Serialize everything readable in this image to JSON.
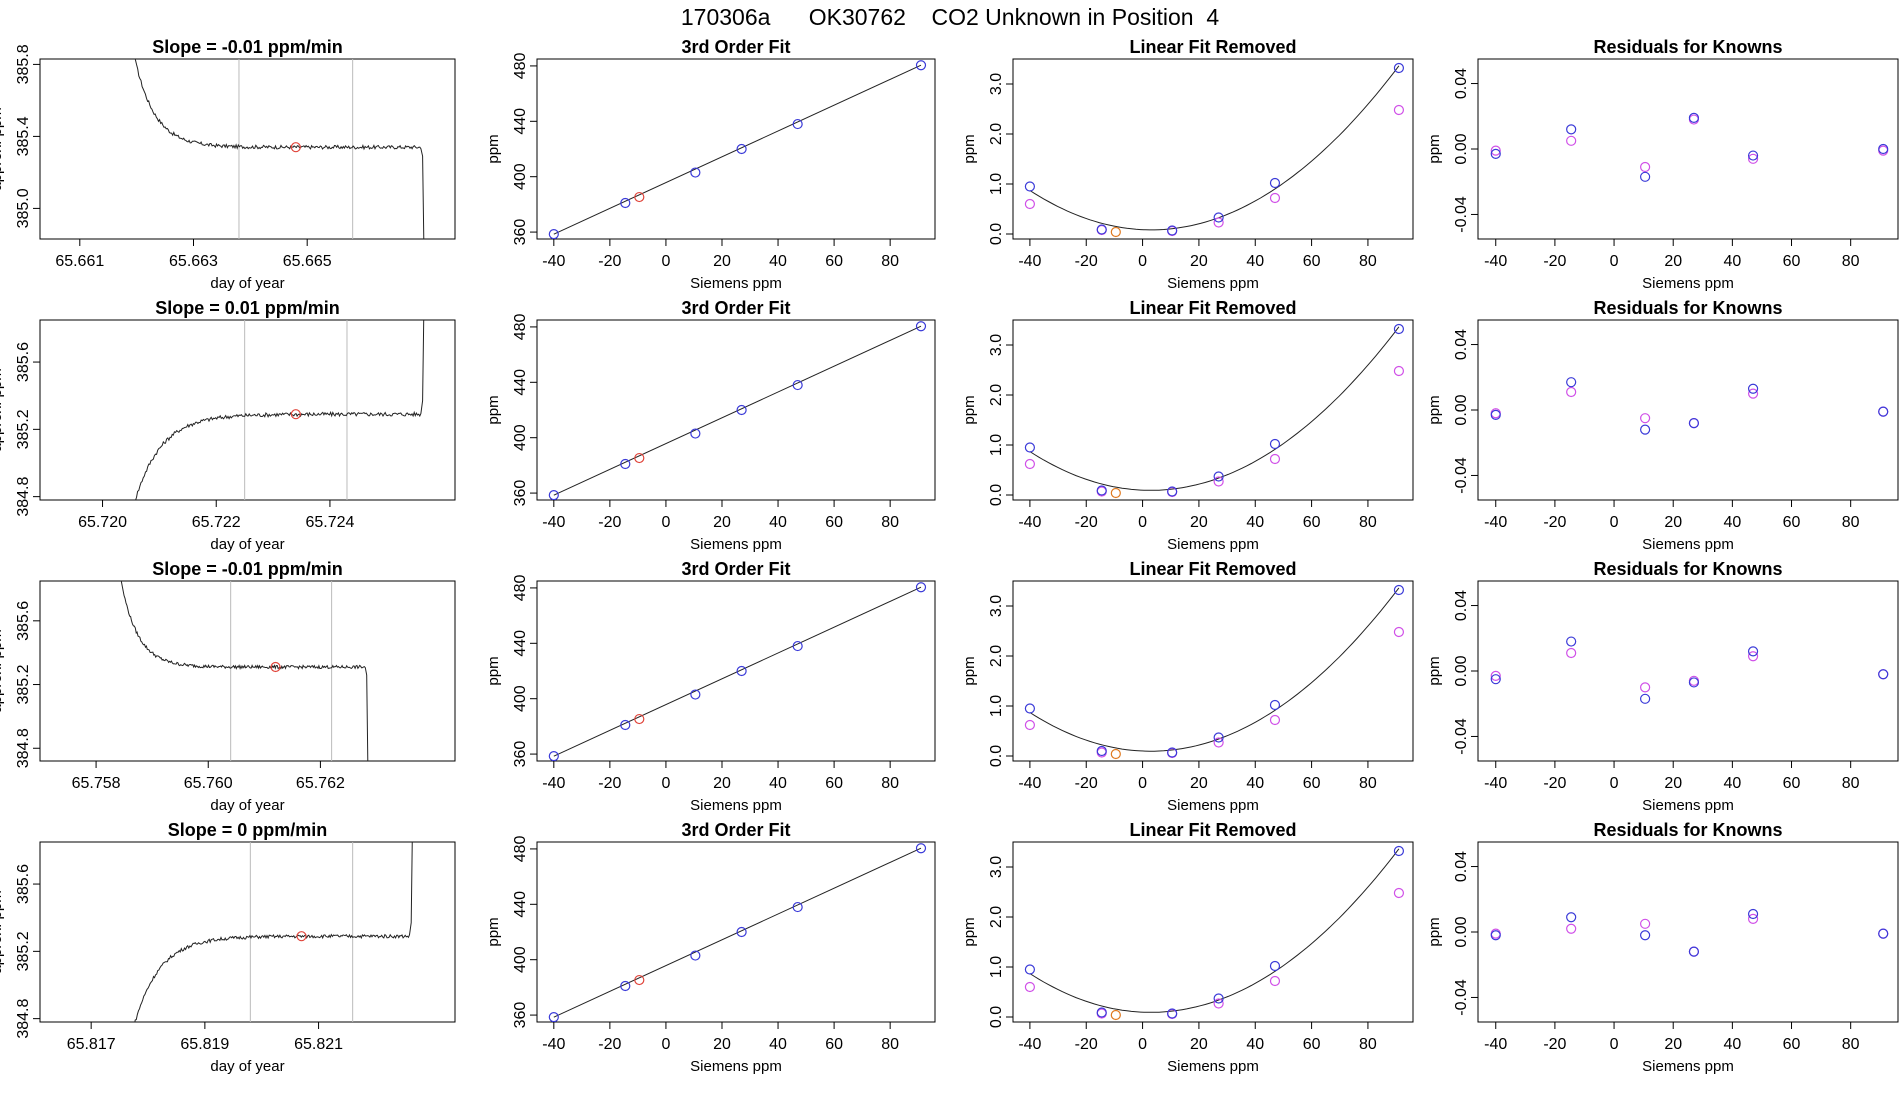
{
  "title": "170306a      OK30762    CO2 Unknown in Position  4",
  "colors": {
    "line": "#222222",
    "known_fit": "#3a3ad8",
    "known_raw": "#d050e8",
    "unknown": "#e0443a",
    "unknown_lfr": "#e07a20",
    "gridline": "#bbbbbb"
  },
  "chart_data": [
    {
      "row": 1,
      "trace": {
        "type": "line",
        "title": "Slope =  -0.01  ppm/min",
        "xlabel": "day of year",
        "ylabel": "approx. ppm",
        "xlim": [
          65.6603,
          65.6676
        ],
        "ylim": [
          384.83,
          385.83
        ],
        "xticks": [
          "65.661",
          "65.663",
          "65.665"
        ],
        "xtick_values": [
          65.661,
          65.663,
          65.665
        ],
        "yticks": [
          "385.0",
          "385.4",
          "385.8"
        ],
        "ytick_values": [
          385.0,
          385.4,
          385.8
        ],
        "vlines": [
          65.6638,
          65.6658
        ],
        "marker": [
          65.6648,
          385.34
        ],
        "shape": "fall",
        "plateau": 385.34,
        "start_x": 65.662,
        "end_x": 65.667,
        "noise": 0.01
      },
      "fit": {
        "type": "scatter",
        "title": "3rd Order Fit",
        "xlabel": "Siemens ppm",
        "ylabel": "ppm",
        "xlim": [
          -46,
          96
        ],
        "ylim": [
          355,
          485
        ],
        "xticks": [
          "-40",
          "-20",
          "0",
          "20",
          "40",
          "60",
          "80"
        ],
        "xtick_values": [
          -40,
          -20,
          0,
          20,
          40,
          60,
          80
        ],
        "yticks": [
          "360",
          "400",
          "440",
          "480"
        ],
        "ytick_values": [
          360,
          400,
          440,
          480
        ],
        "known_x": [
          -40,
          -14.5,
          10.5,
          27,
          47,
          91
        ],
        "known_y": [
          358.5,
          381,
          403,
          420,
          438,
          480.5
        ],
        "unknown_x": [
          -9.5
        ],
        "unknown_y": [
          385.3
        ]
      },
      "lfr": {
        "type": "scatter",
        "title": "Linear Fit Removed",
        "xlabel": "Siemens ppm",
        "ylabel": "ppm",
        "xlim": [
          -46,
          96
        ],
        "ylim": [
          -0.1,
          3.5
        ],
        "xticks": [
          "-40",
          "-20",
          "0",
          "20",
          "40",
          "60",
          "80"
        ],
        "xtick_values": [
          -40,
          -20,
          0,
          20,
          40,
          60,
          80
        ],
        "yticks": [
          "0.0",
          "1.0",
          "2.0",
          "3.0"
        ],
        "ytick_values": [
          0,
          1,
          2,
          3
        ],
        "known_x": [
          -40,
          -14.5,
          10.5,
          27,
          47,
          91
        ],
        "fit_y": [
          0.95,
          0.09,
          0.07,
          0.33,
          1.02,
          3.32
        ],
        "raw_y": [
          0.6,
          0.08,
          0.06,
          0.23,
          0.72,
          2.48
        ],
        "unknown_x": [
          -9.5
        ],
        "unknown_y": [
          0.04
        ]
      },
      "resid": {
        "type": "scatter",
        "title": "Residuals for Knowns",
        "xlabel": "Siemens ppm",
        "ylabel": "ppm",
        "xlim": [
          -46,
          96
        ],
        "ylim": [
          -0.055,
          0.055
        ],
        "xticks": [
          "-40",
          "-20",
          "0",
          "20",
          "40",
          "60",
          "80"
        ],
        "xtick_values": [
          -40,
          -20,
          0,
          20,
          40,
          60,
          80
        ],
        "yticks": [
          "-0.04",
          "0.00",
          "0.04"
        ],
        "ytick_values": [
          -0.04,
          0,
          0.04
        ],
        "known_x": [
          -40,
          -14.5,
          10.5,
          27,
          47,
          91
        ],
        "series1_y": [
          -0.003,
          0.012,
          -0.017,
          0.019,
          -0.004,
          0.0
        ],
        "series2_y": [
          -0.001,
          0.005,
          -0.011,
          0.018,
          -0.006,
          -0.001
        ]
      }
    },
    {
      "row": 2,
      "trace": {
        "type": "line",
        "title": "Slope =  0.01  ppm/min",
        "xlabel": "day of year",
        "ylabel": "approx. ppm",
        "xlim": [
          65.7189,
          65.7262
        ],
        "ylim": [
          384.78,
          385.85
        ],
        "xticks": [
          "65.720",
          "65.722",
          "65.724"
        ],
        "xtick_values": [
          65.72,
          65.722,
          65.724
        ],
        "yticks": [
          "384.8",
          "385.2",
          "385.6"
        ],
        "ytick_values": [
          384.8,
          385.2,
          385.6
        ],
        "vlines": [
          65.7225,
          65.7243
        ],
        "marker": [
          65.7234,
          385.29
        ],
        "shape": "rise",
        "plateau": 385.29,
        "start_x": 65.7205,
        "end_x": 65.7256,
        "noise": 0.012
      },
      "fit": {
        "type": "scatter",
        "title": "3rd Order Fit",
        "xlabel": "Siemens ppm",
        "ylabel": "ppm",
        "xlim": [
          -46,
          96
        ],
        "ylim": [
          355,
          485
        ],
        "xticks": [
          "-40",
          "-20",
          "0",
          "20",
          "40",
          "60",
          "80"
        ],
        "xtick_values": [
          -40,
          -20,
          0,
          20,
          40,
          60,
          80
        ],
        "yticks": [
          "360",
          "400",
          "440",
          "480"
        ],
        "ytick_values": [
          360,
          400,
          440,
          480
        ],
        "known_x": [
          -40,
          -14.5,
          10.5,
          27,
          47,
          91
        ],
        "known_y": [
          358.5,
          381,
          403,
          420,
          438,
          480.5
        ],
        "unknown_x": [
          -9.5
        ],
        "unknown_y": [
          385.3
        ]
      },
      "lfr": {
        "type": "scatter",
        "title": "Linear Fit Removed",
        "xlabel": "Siemens ppm",
        "ylabel": "ppm",
        "xlim": [
          -46,
          96
        ],
        "ylim": [
          -0.1,
          3.5
        ],
        "xticks": [
          "-40",
          "-20",
          "0",
          "20",
          "40",
          "60",
          "80"
        ],
        "xtick_values": [
          -40,
          -20,
          0,
          20,
          40,
          60,
          80
        ],
        "yticks": [
          "0.0",
          "1.0",
          "2.0",
          "3.0"
        ],
        "ytick_values": [
          0,
          1,
          2,
          3
        ],
        "known_x": [
          -40,
          -14.5,
          10.5,
          27,
          47,
          91
        ],
        "fit_y": [
          0.95,
          0.09,
          0.07,
          0.37,
          1.02,
          3.32
        ],
        "raw_y": [
          0.62,
          0.07,
          0.06,
          0.27,
          0.72,
          2.48
        ],
        "unknown_x": [
          -9.5
        ],
        "unknown_y": [
          0.04
        ]
      },
      "resid": {
        "type": "scatter",
        "title": "Residuals for Knowns",
        "xlabel": "Siemens ppm",
        "ylabel": "ppm",
        "xlim": [
          -46,
          96
        ],
        "ylim": [
          -0.055,
          0.055
        ],
        "xticks": [
          "-40",
          "-20",
          "0",
          "20",
          "40",
          "60",
          "80"
        ],
        "xtick_values": [
          -40,
          -20,
          0,
          20,
          40,
          60,
          80
        ],
        "yticks": [
          "-0.04",
          "0.00",
          "0.04"
        ],
        "ytick_values": [
          -0.04,
          0,
          0.04
        ],
        "known_x": [
          -40,
          -14.5,
          10.5,
          27,
          47,
          91
        ],
        "series1_y": [
          -0.003,
          0.017,
          -0.012,
          -0.008,
          0.013,
          -0.001
        ],
        "series2_y": [
          -0.002,
          0.011,
          -0.005,
          -0.008,
          0.01,
          -0.001
        ]
      }
    },
    {
      "row": 3,
      "trace": {
        "type": "line",
        "title": "Slope =  -0.01  ppm/min",
        "xlabel": "day of year",
        "ylabel": "approx. ppm",
        "xlim": [
          65.757,
          65.7644
        ],
        "ylim": [
          384.72,
          385.85
        ],
        "xticks": [
          "65.758",
          "65.760",
          "65.762"
        ],
        "xtick_values": [
          65.758,
          65.76,
          65.762
        ],
        "yticks": [
          "384.8",
          "385.2",
          "385.6"
        ],
        "ytick_values": [
          384.8,
          385.2,
          385.6
        ],
        "vlines": [
          65.7604,
          65.7622
        ],
        "marker": [
          65.7612,
          385.31
        ],
        "shape": "fall",
        "plateau": 385.31,
        "start_x": 65.7585,
        "end_x": 65.7628,
        "noise": 0.01
      },
      "fit": {
        "type": "scatter",
        "title": "3rd Order Fit",
        "xlabel": "Siemens ppm",
        "ylabel": "ppm",
        "xlim": [
          -46,
          96
        ],
        "ylim": [
          355,
          485
        ],
        "xticks": [
          "-40",
          "-20",
          "0",
          "20",
          "40",
          "60",
          "80"
        ],
        "xtick_values": [
          -40,
          -20,
          0,
          20,
          40,
          60,
          80
        ],
        "yticks": [
          "360",
          "400",
          "440",
          "480"
        ],
        "ytick_values": [
          360,
          400,
          440,
          480
        ],
        "known_x": [
          -40,
          -14.5,
          10.5,
          27,
          47,
          91
        ],
        "known_y": [
          358.5,
          381,
          403,
          420,
          438,
          480.5
        ],
        "unknown_x": [
          -9.5
        ],
        "unknown_y": [
          385.3
        ]
      },
      "lfr": {
        "type": "scatter",
        "title": "Linear Fit Removed",
        "xlabel": "Siemens ppm",
        "ylabel": "ppm",
        "xlim": [
          -46,
          96
        ],
        "ylim": [
          -0.1,
          3.5
        ],
        "xticks": [
          "-40",
          "-20",
          "0",
          "20",
          "40",
          "60",
          "80"
        ],
        "xtick_values": [
          -40,
          -20,
          0,
          20,
          40,
          60,
          80
        ],
        "yticks": [
          "0.0",
          "1.0",
          "2.0",
          "3.0"
        ],
        "ytick_values": [
          0,
          1,
          2,
          3
        ],
        "known_x": [
          -40,
          -14.5,
          10.5,
          27,
          47,
          91
        ],
        "fit_y": [
          0.95,
          0.1,
          0.07,
          0.37,
          1.02,
          3.32
        ],
        "raw_y": [
          0.62,
          0.07,
          0.06,
          0.27,
          0.72,
          2.48
        ],
        "unknown_x": [
          -9.5
        ],
        "unknown_y": [
          0.04
        ]
      },
      "resid": {
        "type": "scatter",
        "title": "Residuals for Knowns",
        "xlabel": "Siemens ppm",
        "ylabel": "ppm",
        "xlim": [
          -46,
          96
        ],
        "ylim": [
          -0.055,
          0.055
        ],
        "xticks": [
          "-40",
          "-20",
          "0",
          "20",
          "40",
          "60",
          "80"
        ],
        "xtick_values": [
          -40,
          -20,
          0,
          20,
          40,
          60,
          80
        ],
        "yticks": [
          "-0.04",
          "0.00",
          "0.04"
        ],
        "ytick_values": [
          -0.04,
          0,
          0.04
        ],
        "known_x": [
          -40,
          -14.5,
          10.5,
          27,
          47,
          91
        ],
        "series1_y": [
          -0.005,
          0.018,
          -0.017,
          -0.007,
          0.012,
          -0.002
        ],
        "series2_y": [
          -0.003,
          0.011,
          -0.01,
          -0.006,
          0.009,
          -0.002
        ]
      }
    },
    {
      "row": 4,
      "trace": {
        "type": "line",
        "title": "Slope =  0  ppm/min",
        "xlabel": "day of year",
        "ylabel": "approx. ppm",
        "xlim": [
          65.8161,
          65.8234
        ],
        "ylim": [
          384.78,
          385.85
        ],
        "xticks": [
          "65.817",
          "65.819",
          "65.821"
        ],
        "xtick_values": [
          65.817,
          65.819,
          65.821
        ],
        "yticks": [
          "384.8",
          "385.2",
          "385.6"
        ],
        "ytick_values": [
          384.8,
          385.2,
          385.6
        ],
        "vlines": [
          65.8198,
          65.8216
        ],
        "marker": [
          65.8207,
          385.29
        ],
        "shape": "rise",
        "plateau": 385.29,
        "start_x": 65.8177,
        "end_x": 65.8226,
        "noise": 0.01
      },
      "fit": {
        "type": "scatter",
        "title": "3rd Order Fit",
        "xlabel": "Siemens ppm",
        "ylabel": "ppm",
        "xlim": [
          -46,
          96
        ],
        "ylim": [
          355,
          485
        ],
        "xticks": [
          "-40",
          "-20",
          "0",
          "20",
          "40",
          "60",
          "80"
        ],
        "xtick_values": [
          -40,
          -20,
          0,
          20,
          40,
          60,
          80
        ],
        "yticks": [
          "360",
          "400",
          "440",
          "480"
        ],
        "ytick_values": [
          360,
          400,
          440,
          480
        ],
        "known_x": [
          -40,
          -14.5,
          10.5,
          27,
          47,
          91
        ],
        "known_y": [
          358.5,
          381,
          403,
          420,
          438,
          480.5
        ],
        "unknown_x": [
          -9.5
        ],
        "unknown_y": [
          385.3
        ]
      },
      "lfr": {
        "type": "scatter",
        "title": "Linear Fit Removed",
        "xlabel": "Siemens ppm",
        "ylabel": "ppm",
        "xlim": [
          -46,
          96
        ],
        "ylim": [
          -0.1,
          3.5
        ],
        "xticks": [
          "-40",
          "-20",
          "0",
          "20",
          "40",
          "60",
          "80"
        ],
        "xtick_values": [
          -40,
          -20,
          0,
          20,
          40,
          60,
          80
        ],
        "yticks": [
          "0.0",
          "1.0",
          "2.0",
          "3.0"
        ],
        "ytick_values": [
          0,
          1,
          2,
          3
        ],
        "known_x": [
          -40,
          -14.5,
          10.5,
          27,
          47,
          91
        ],
        "fit_y": [
          0.95,
          0.09,
          0.07,
          0.37,
          1.02,
          3.32
        ],
        "raw_y": [
          0.6,
          0.07,
          0.06,
          0.27,
          0.72,
          2.48
        ],
        "unknown_x": [
          -9.5
        ],
        "unknown_y": [
          0.04
        ]
      },
      "resid": {
        "type": "scatter",
        "title": "Residuals for Knowns",
        "xlabel": "Siemens ppm",
        "ylabel": "ppm",
        "xlim": [
          -46,
          96
        ],
        "ylim": [
          -0.055,
          0.055
        ],
        "xticks": [
          "-40",
          "-20",
          "0",
          "20",
          "40",
          "60",
          "80"
        ],
        "xtick_values": [
          -40,
          -20,
          0,
          20,
          40,
          60,
          80
        ],
        "yticks": [
          "-0.04",
          "0.00",
          "0.04"
        ],
        "ytick_values": [
          -0.04,
          0,
          0.04
        ],
        "known_x": [
          -40,
          -14.5,
          10.5,
          27,
          47,
          91
        ],
        "series1_y": [
          -0.002,
          0.009,
          -0.002,
          -0.012,
          0.011,
          -0.001
        ],
        "series2_y": [
          -0.001,
          0.002,
          0.005,
          -0.012,
          0.008,
          -0.001
        ]
      }
    }
  ]
}
